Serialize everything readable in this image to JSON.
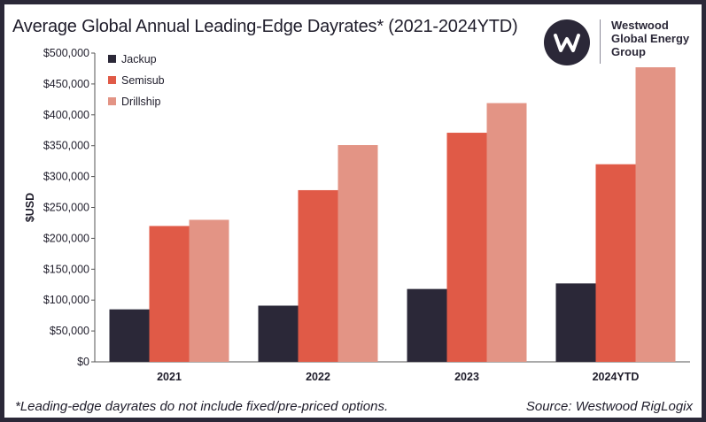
{
  "footnote": "*Leading-edge dayrates do not include fixed/pre-priced options.",
  "source": "Source: Westwood RigLogix",
  "logo": {
    "lines": [
      "Westwood",
      "Global Energy",
      "Group"
    ],
    "color": "#2b2838"
  },
  "chart_data": {
    "type": "bar",
    "title": "Average Global Annual Leading-Edge Dayrates* (2021-2024YTD)",
    "xlabel": "",
    "ylabel": "$USD",
    "categories": [
      "2021",
      "2022",
      "2023",
      "2024YTD"
    ],
    "ylim": [
      0,
      500000
    ],
    "yticks": [
      {
        "value": 0,
        "label": "$0"
      },
      {
        "value": 50000,
        "label": "$50,000"
      },
      {
        "value": 100000,
        "label": "$100,000"
      },
      {
        "value": 150000,
        "label": "$150,000"
      },
      {
        "value": 200000,
        "label": "$200,000"
      },
      {
        "value": 250000,
        "label": "$250,000"
      },
      {
        "value": 300000,
        "label": "$300,000"
      },
      {
        "value": 350000,
        "label": "$350,000"
      },
      {
        "value": 400000,
        "label": "$400,000"
      },
      {
        "value": 450000,
        "label": "$450,000"
      },
      {
        "value": 500000,
        "label": "$500,000"
      }
    ],
    "grid": false,
    "legend_position": "top-left",
    "series": [
      {
        "name": "Jackup",
        "color": "#2b2838",
        "values": [
          85000,
          91000,
          118000,
          127000
        ]
      },
      {
        "name": "Semisub",
        "color": "#e05a47",
        "values": [
          220000,
          278000,
          371000,
          320000
        ]
      },
      {
        "name": "Drillship",
        "color": "#e39485",
        "values": [
          230000,
          351000,
          419000,
          477000
        ]
      }
    ]
  }
}
